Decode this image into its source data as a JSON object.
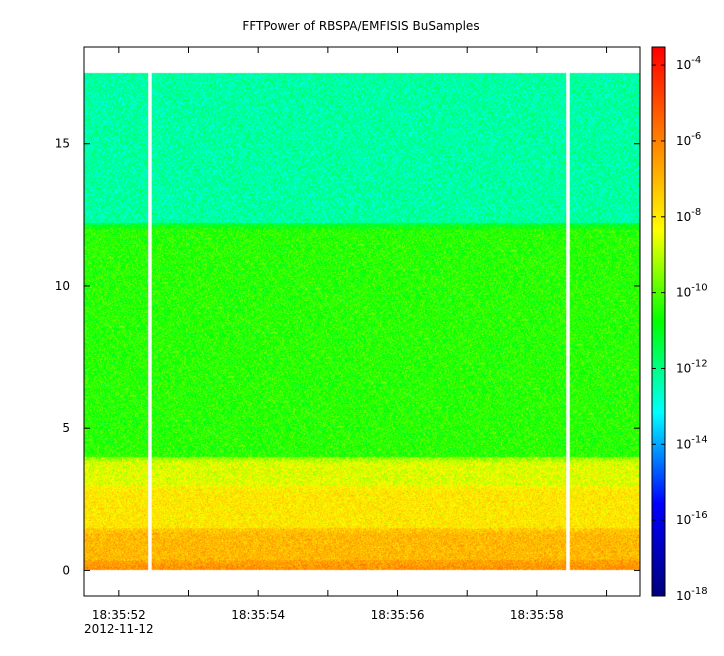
{
  "chart_data": {
    "type": "heatmap",
    "title": "FFTPower of RBSPA/EMFISIS  BuSamples",
    "xlabel": "",
    "ylabel": "",
    "x_ticks": [
      {
        "value": 1.0,
        "label": "18:35:52",
        "sublabel": "2012-11-12"
      },
      {
        "value": 3.0,
        "label": "18:35:54"
      },
      {
        "value": 5.0,
        "label": "18:35:56"
      },
      {
        "value": 7.0,
        "label": "18:35:58"
      }
    ],
    "x_minor_ticks": [
      2.0,
      4.0,
      6.0,
      8.0
    ],
    "xlim": [
      0.5,
      8.48
    ],
    "x_unit": "seconds after 18:35:51",
    "ylim": [
      -0.9,
      18.4
    ],
    "y_ticks": [
      0,
      5,
      10,
      15
    ],
    "colorbar": {
      "scale": "log",
      "range": [
        1e-18,
        0.0003
      ],
      "tick_labels": [
        "10-4",
        "10-6",
        "10-8",
        "10-10",
        "10-12",
        "10-14",
        "10-16",
        "10-18"
      ],
      "tick_exponents": [
        -4,
        -6,
        -8,
        -10,
        -12,
        -14,
        -16,
        -18
      ],
      "colors": [
        "#00007f",
        "#0000ff",
        "#00ffff",
        "#00ff00",
        "#ffff00",
        "#ff8000",
        "#ff0000"
      ]
    },
    "data_extent": {
      "x": [
        0.5,
        8.48
      ],
      "y": [
        0.0,
        17.5
      ]
    },
    "gaps_x": [
      1.45,
      7.45
    ],
    "bands": [
      {
        "y_from": 0.0,
        "y_to": 0.35,
        "log_power": -6.3
      },
      {
        "y_from": 0.35,
        "y_to": 1.5,
        "log_power": -7.0
      },
      {
        "y_from": 1.5,
        "y_to": 3.0,
        "log_power": -7.9
      },
      {
        "y_from": 3.0,
        "y_to": 4.0,
        "log_power": -8.6
      },
      {
        "y_from": 4.0,
        "y_to": 12.2,
        "log_power": -10.4
      },
      {
        "y_from": 12.2,
        "y_to": 17.5,
        "log_power": -12.3
      }
    ]
  }
}
